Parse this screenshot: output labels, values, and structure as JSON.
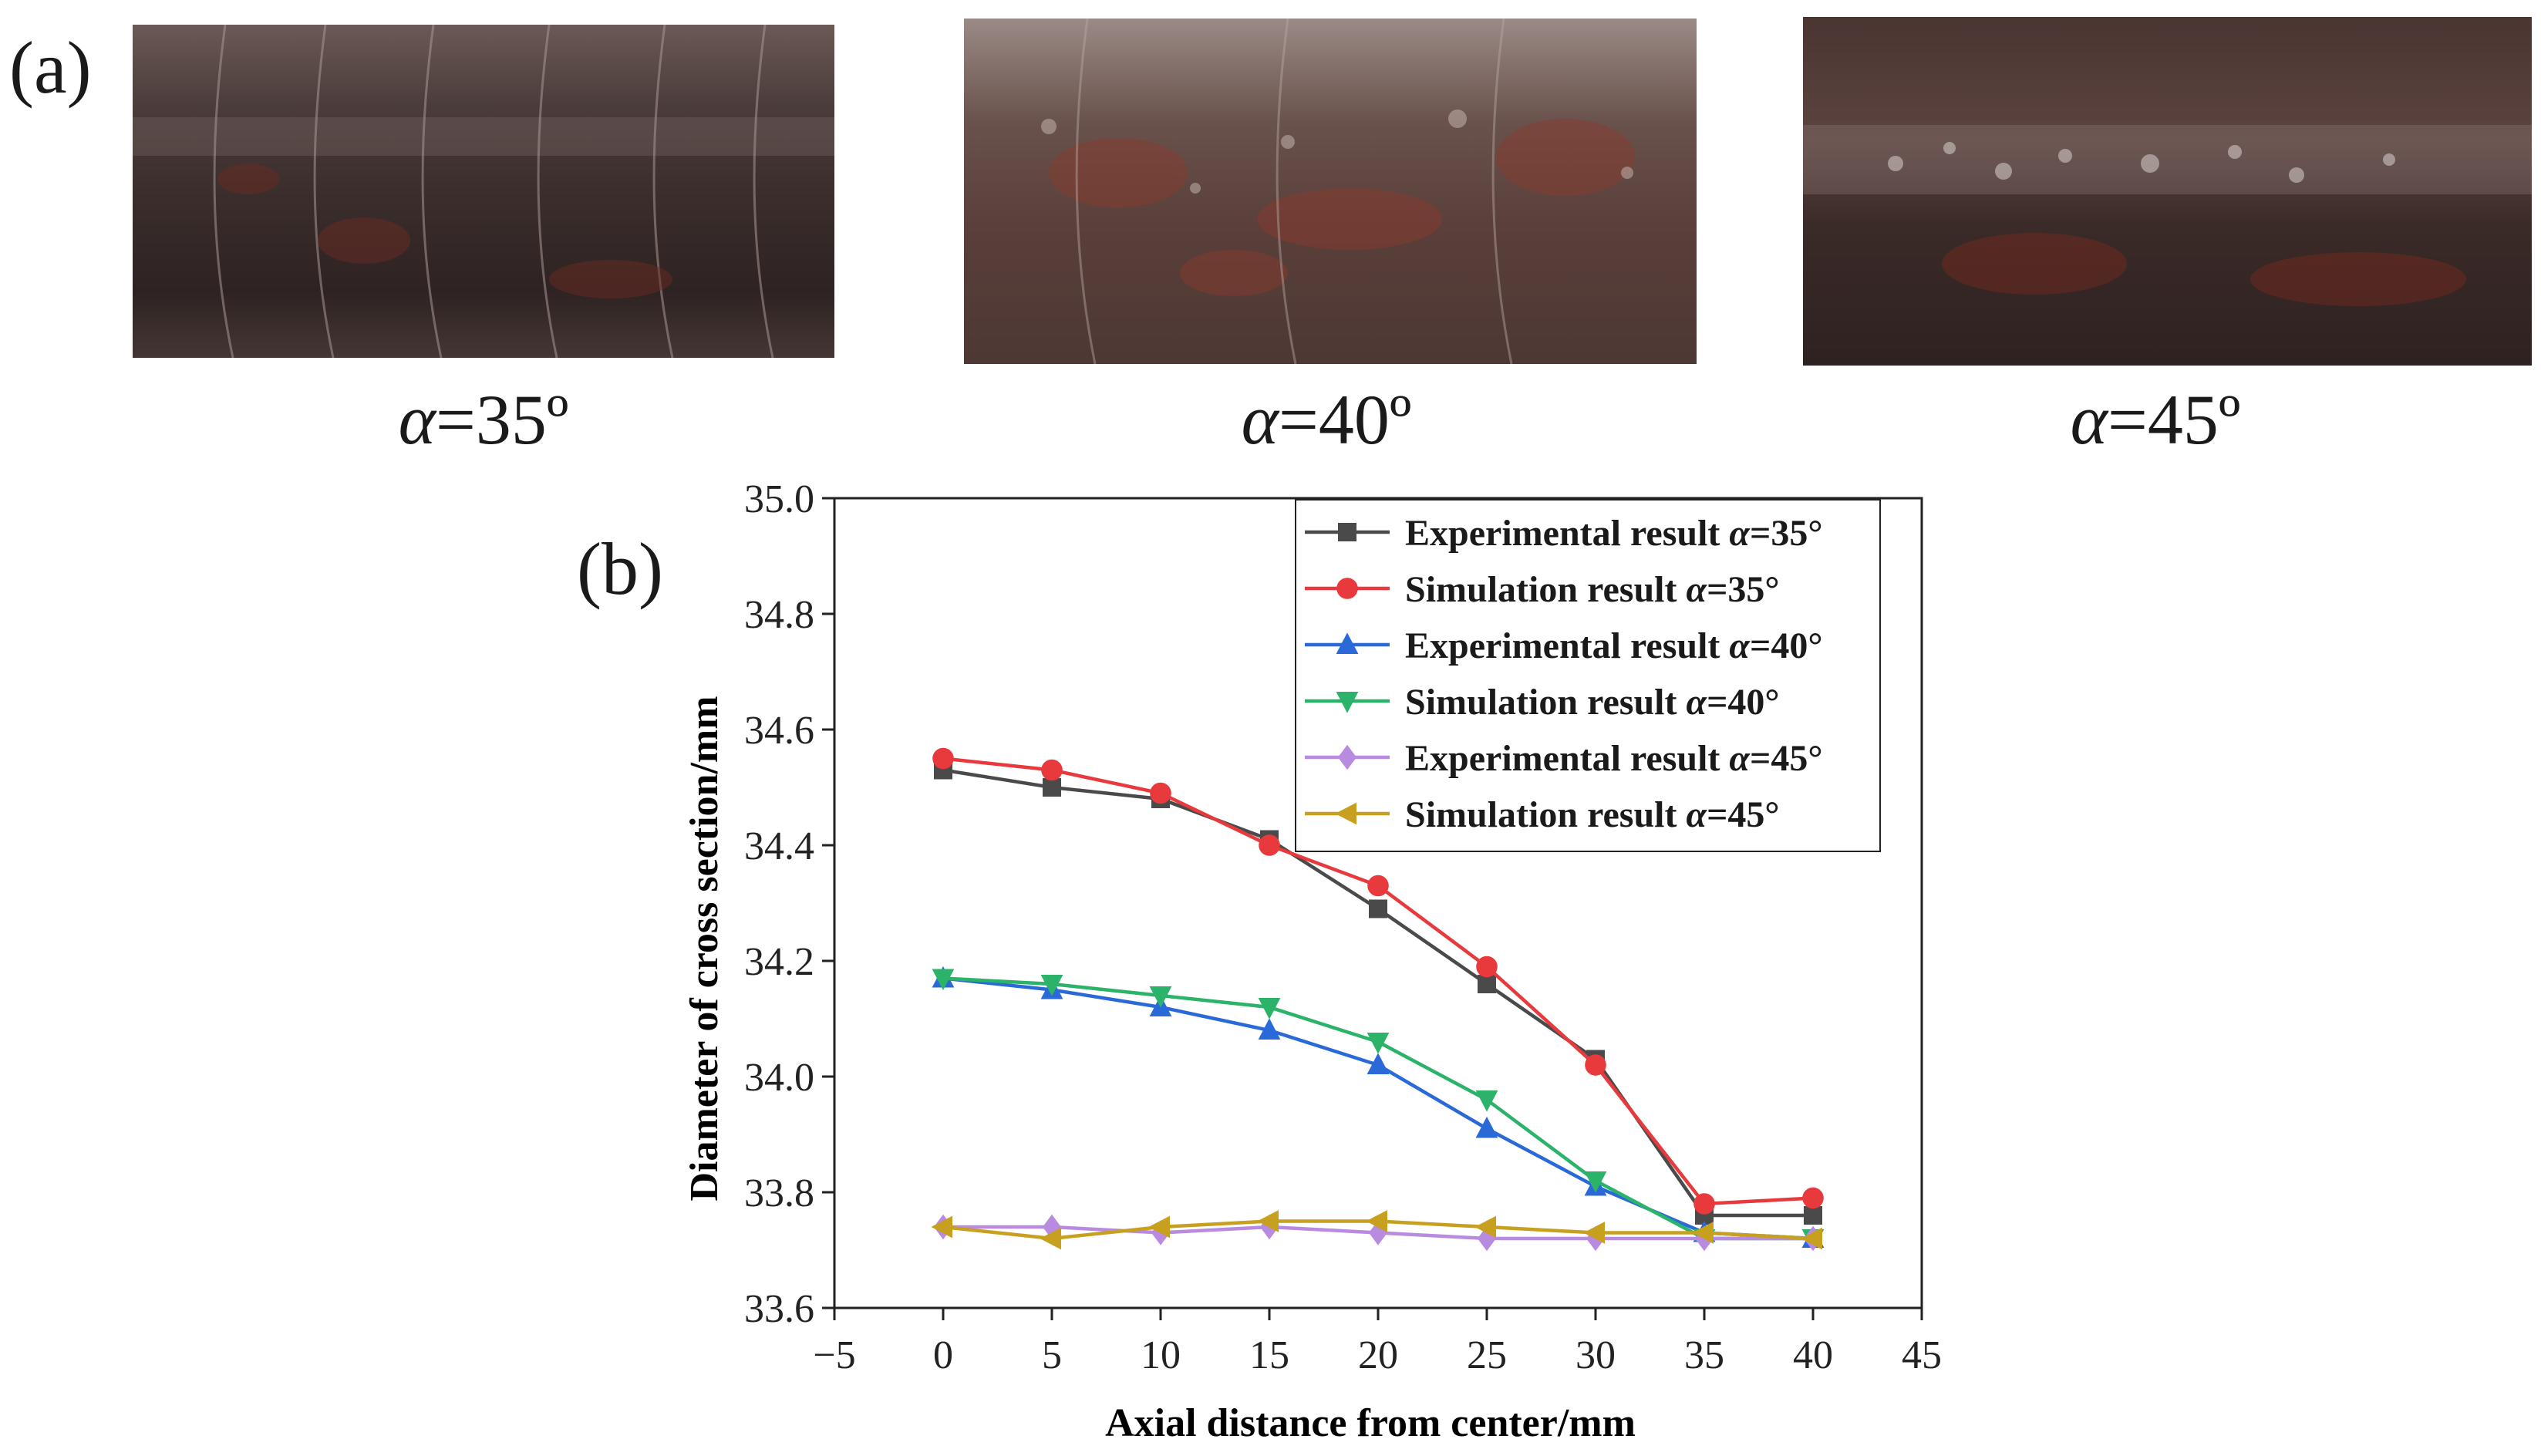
{
  "figure": {
    "panel_a_label": "(a)",
    "panel_b_label": "(b)",
    "photos": [
      {
        "alpha_symbol": "α",
        "caption_rest": "=35º"
      },
      {
        "alpha_symbol": "α",
        "caption_rest": "=40º"
      },
      {
        "alpha_symbol": "α",
        "caption_rest": "=45º"
      }
    ]
  },
  "chart_data": {
    "type": "line",
    "xlabel": "Axial distance from center/mm",
    "ylabel": "Diameter of cross section/mm",
    "xlim": [
      -5,
      45
    ],
    "ylim": [
      33.6,
      35.0
    ],
    "xticks": [
      "−5",
      "0",
      "5",
      "10",
      "15",
      "20",
      "25",
      "30",
      "35",
      "40",
      "45"
    ],
    "xtick_values": [
      -5,
      0,
      5,
      10,
      15,
      20,
      25,
      30,
      35,
      40,
      45
    ],
    "yticks": [
      "33.6",
      "33.8",
      "34.0",
      "34.2",
      "34.4",
      "34.6",
      "34.8",
      "35.0"
    ],
    "ytick_values": [
      33.6,
      33.8,
      34.0,
      34.2,
      34.4,
      34.6,
      34.8,
      35.0
    ],
    "grid": false,
    "legend_position": "top-right",
    "x": [
      0,
      5,
      10,
      15,
      20,
      25,
      30,
      35,
      40
    ],
    "series": [
      {
        "name": "Experimental result α=35°",
        "label_text": "Experimental result ",
        "alpha": "α",
        "angle": "=35°",
        "color": "#4a4a4a",
        "marker": "square",
        "values": [
          34.53,
          34.5,
          34.48,
          34.41,
          34.29,
          34.16,
          34.03,
          33.76,
          33.76
        ]
      },
      {
        "name": "Simulation result α=35°",
        "label_text": "Simulation result ",
        "alpha": "α",
        "angle": "=35°",
        "color": "#e8393d",
        "marker": "circle",
        "values": [
          34.55,
          34.53,
          34.49,
          34.4,
          34.33,
          34.19,
          34.02,
          33.78,
          33.79
        ]
      },
      {
        "name": "Experimental result α=40°",
        "label_text": "Experimental result ",
        "alpha": "α",
        "angle": "=40°",
        "color": "#2a6ad8",
        "marker": "triangle-up",
        "values": [
          34.17,
          34.15,
          34.12,
          34.08,
          34.02,
          33.91,
          33.81,
          33.73,
          33.72
        ]
      },
      {
        "name": "Simulation result α=40°",
        "label_text": "Simulation result ",
        "alpha": "α",
        "angle": "=40°",
        "color": "#2bb36a",
        "marker": "triangle-down",
        "values": [
          34.17,
          34.16,
          34.14,
          34.12,
          34.06,
          33.96,
          33.82,
          33.72,
          33.72
        ]
      },
      {
        "name": "Experimental result α=45°",
        "label_text": "Experimental result ",
        "alpha": "α",
        "angle": "=45°",
        "color": "#b88ae0",
        "marker": "diamond",
        "values": [
          33.74,
          33.74,
          33.73,
          33.74,
          33.73,
          33.72,
          33.72,
          33.72,
          33.72
        ]
      },
      {
        "name": "Simulation result α=45°",
        "label_text": "Simulation result ",
        "alpha": "α",
        "angle": "=45°",
        "color": "#c8a020",
        "marker": "triangle-left",
        "values": [
          33.74,
          33.72,
          33.74,
          33.75,
          33.75,
          33.74,
          33.73,
          33.73,
          33.72
        ]
      }
    ]
  }
}
